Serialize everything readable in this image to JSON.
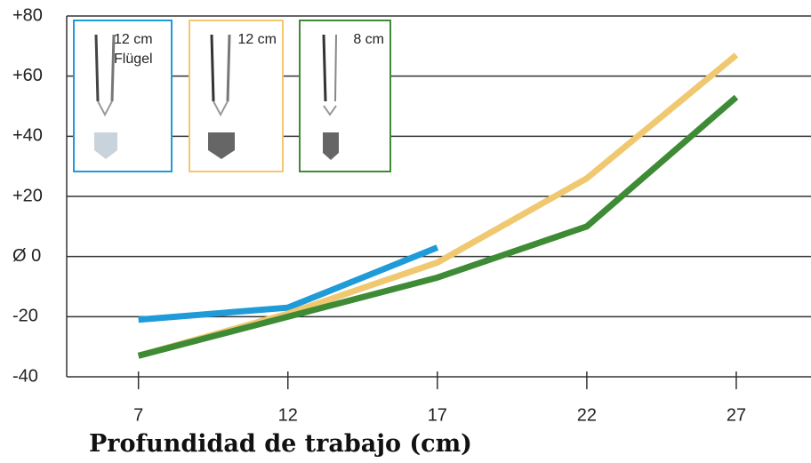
{
  "chart_data": {
    "type": "line",
    "x_label": "Profundidad de trabajo (cm)",
    "x": [
      7,
      12,
      17,
      22,
      27
    ],
    "xlim": [
      4.6,
      29.5
    ],
    "xticks": [
      7,
      12,
      17,
      22,
      27
    ],
    "ylim": [
      -40,
      80
    ],
    "yticks": [
      -40,
      -20,
      {
        "value": 0,
        "label": "Ø 0"
      },
      {
        "value": 20,
        "label": "+20"
      },
      {
        "value": 40,
        "label": "+40"
      },
      {
        "value": 60,
        "label": "+60"
      },
      {
        "value": 80,
        "label": "+80"
      }
    ],
    "grid": true,
    "series": [
      {
        "name": "12 cm Flügel",
        "color": "#1f9bd7",
        "values": [
          -21,
          -17,
          3,
          null,
          null
        ]
      },
      {
        "name": "12 cm",
        "color": "#f0c870",
        "values": [
          -33,
          -19,
          -2,
          26,
          67
        ]
      },
      {
        "name": "8 cm",
        "color": "#3e8b36",
        "values": [
          -33,
          -20,
          -7,
          10,
          53
        ]
      }
    ]
  }
}
